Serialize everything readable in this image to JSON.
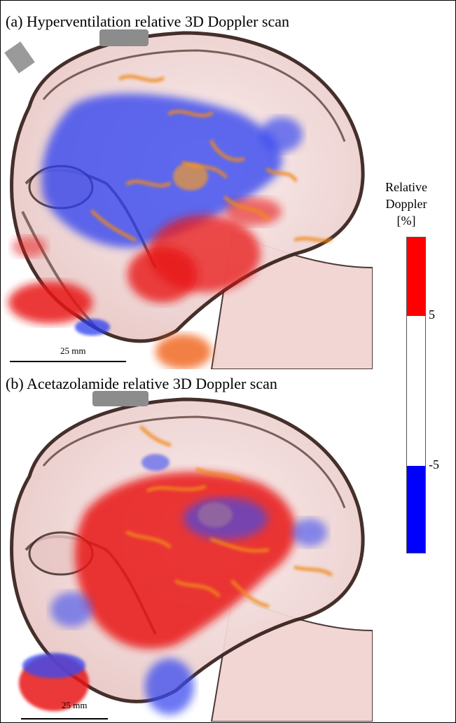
{
  "panel_a": {
    "title": "(a) Hyperventilation relative 3D Doppler scan",
    "scale_label": "25 mm"
  },
  "panel_b": {
    "title": "(b) Acetazolamide relative 3D Doppler scan",
    "scale_label": "25 mm"
  },
  "colorbar": {
    "title_line1": "Relative",
    "title_line2": "Doppler",
    "unit": "[%]",
    "tick_high": "5",
    "tick_low": "-5",
    "color_positive": "#ff0000",
    "color_neutral": "#ffffff",
    "color_negative": "#0000ff"
  },
  "colors": {
    "skin": "#f2d6d4",
    "skull_outline": "#3a2420",
    "probe": "#8c8c8c",
    "vessel_orange": "#f08a1c"
  }
}
